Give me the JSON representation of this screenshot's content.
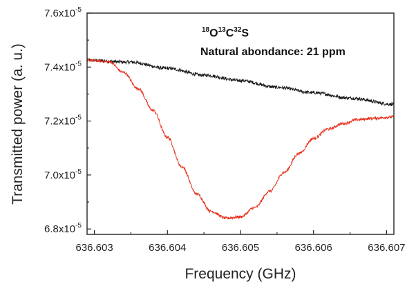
{
  "chart_data": {
    "type": "line",
    "xlabel": "Frequency (GHz)",
    "ylabel": "Transmitted power (a. u.)",
    "xlim": [
      636.6029,
      636.6071
    ],
    "ylim": [
      6.78e-05,
      7.6e-05
    ],
    "x_ticks": [
      {
        "value": 636.603,
        "label": "636.603"
      },
      {
        "value": 636.604,
        "label": "636.604"
      },
      {
        "value": 636.605,
        "label": "636.605"
      },
      {
        "value": 636.606,
        "label": "636.606"
      },
      {
        "value": 636.607,
        "label": "636.607"
      }
    ],
    "y_ticks": [
      {
        "value": 6.8e-05,
        "mant": "6.8x10",
        "exp": "-5"
      },
      {
        "value": 7e-05,
        "mant": "7.0x10",
        "exp": "-5"
      },
      {
        "value": 7.2e-05,
        "mant": "7.2x10",
        "exp": "-5"
      },
      {
        "value": 7.4e-05,
        "mant": "7.4x10",
        "exp": "-5"
      },
      {
        "value": 7.6e-05,
        "mant": "7.6x10",
        "exp": "-5"
      }
    ],
    "grid": false,
    "annotation": {
      "isotopologue": [
        {
          "text": "18",
          "sup": true
        },
        {
          "text": "O",
          "sup": false
        },
        {
          "text": "13",
          "sup": true
        },
        {
          "text": "C",
          "sup": false
        },
        {
          "text": "32",
          "sup": true
        },
        {
          "text": "S",
          "sup": false
        }
      ],
      "abundance": "Natural abondance: 21 ppm"
    },
    "series": [
      {
        "color": "#1a1a1a",
        "x": [
          636.6029,
          636.6035,
          636.604,
          636.6045,
          636.605,
          636.6055,
          636.606,
          636.6065,
          636.6071
        ],
        "y": [
          7.425e-05,
          7.418e-05,
          7.395e-05,
          7.37e-05,
          7.35e-05,
          7.325e-05,
          7.305e-05,
          7.285e-05,
          7.262e-05
        ],
        "noise": 6e-08
      },
      {
        "color": "#e8321e",
        "x": [
          636.6029,
          636.6032,
          636.6034,
          636.6036,
          636.6038,
          636.604,
          636.6042,
          636.6044,
          636.6046,
          636.6048,
          636.605,
          636.6052,
          636.6054,
          636.6056,
          636.6058,
          636.606,
          636.6062,
          636.6064,
          636.6066,
          636.6068,
          636.6071
        ],
        "y": [
          7.425e-05,
          7.42e-05,
          7.38e-05,
          7.32e-05,
          7.24e-05,
          7.14e-05,
          7.03e-05,
          6.93e-05,
          6.865e-05,
          6.84e-05,
          6.845e-05,
          6.88e-05,
          6.94e-05,
          7.01e-05,
          7.08e-05,
          7.135e-05,
          7.17e-05,
          7.19e-05,
          7.205e-05,
          7.21e-05,
          7.215e-05
        ],
        "noise": 5e-08
      }
    ]
  }
}
